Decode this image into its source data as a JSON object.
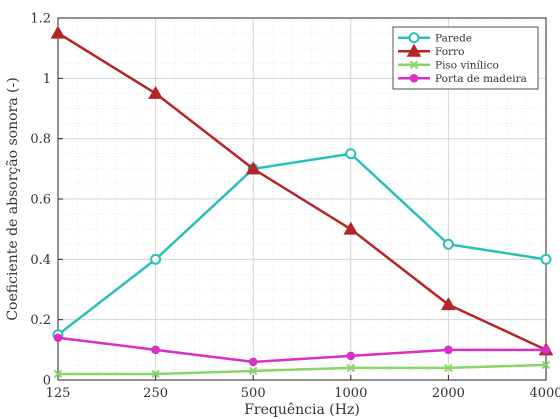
{
  "chart_data": {
    "type": "line",
    "xlabel": "Frequência (Hz)",
    "ylabel": "Coeficiente de absorção sonora (-)",
    "x_ticks": [
      "125",
      "250",
      "500",
      "1000",
      "2000",
      "4000"
    ],
    "x": [
      125,
      250,
      500,
      1000,
      2000,
      4000
    ],
    "x_scale": "log2",
    "y_ticks": [
      "0",
      "0.2",
      "0.4",
      "0.6",
      "0.8",
      "1",
      "1.2"
    ],
    "ylim": [
      0,
      1.2
    ],
    "grid": true,
    "legend_position": "top-right",
    "series": [
      {
        "name": "Parede",
        "color": "#2abfb8",
        "marker": "circle",
        "values": [
          0.15,
          0.4,
          0.7,
          0.75,
          0.45,
          0.4
        ]
      },
      {
        "name": "Forro",
        "color": "#b52525",
        "marker": "triangle",
        "values": [
          1.15,
          0.95,
          0.7,
          0.5,
          0.25,
          0.1
        ]
      },
      {
        "name": "Piso vinílico",
        "color": "#88d66a",
        "marker": "x",
        "values": [
          0.02,
          0.02,
          0.03,
          0.04,
          0.04,
          0.05
        ]
      },
      {
        "name": "Porta de madeira",
        "color": "#d92fc4",
        "marker": "dot",
        "values": [
          0.14,
          0.1,
          0.06,
          0.08,
          0.1,
          0.1
        ]
      }
    ]
  }
}
